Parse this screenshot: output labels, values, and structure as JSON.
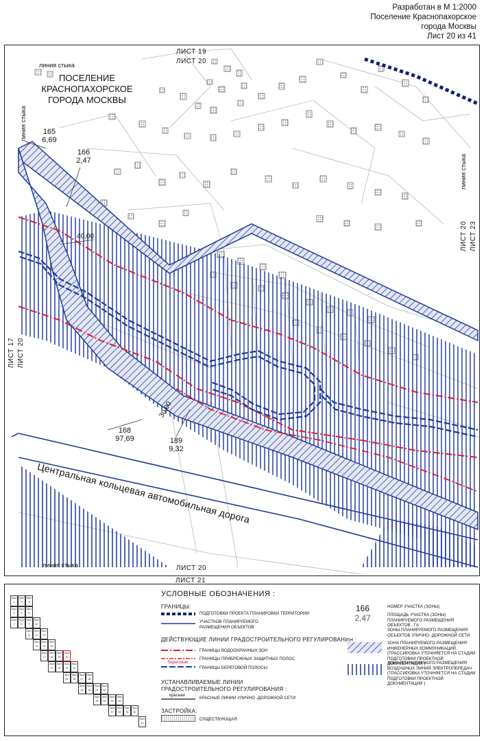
{
  "header": {
    "line1": "Разработан в М 1:2000",
    "line2": "Поселение Краснопахорское",
    "line3": "города Москвы",
    "line4": "Лист 20 из 41"
  },
  "map": {
    "sheet_top_outer": "ЛИСТ 19",
    "sheet_top_inner": "ЛИСТ 20",
    "sheet_bottom": "ЛИСТ 20",
    "sheet_bottom_outer": "ЛИСТ 21",
    "sheet_left_outer": "ЛИСТ 17",
    "sheet_left_inner": "ЛИСТ 20",
    "sheet_right_inner": "ЛИСТ 20",
    "sheet_right_outer": "ЛИСТ 23",
    "join_line_top": "линия стыка",
    "join_line_left": "линия стыка",
    "join_line_right": "линия стыка",
    "join_line_bottom": "линия стыка",
    "settlement": [
      "ПОСЕЛЕНИЕ",
      "КРАСНОПАХОРСКОЕ",
      "ГОРОДА МОСКВЫ"
    ],
    "road": "Центральная кольцевая автомобильная дорога",
    "width_a": "40,00",
    "width_b": "30,00",
    "plots": [
      {
        "num": "165",
        "area": "6,69"
      },
      {
        "num": "166",
        "area": "2,47"
      },
      {
        "num": "168",
        "area": "97,69"
      },
      {
        "num": "189",
        "area": "9,32"
      }
    ],
    "colors": {
      "blue": "#1d3a9a",
      "red": "#d8202a",
      "hatch": "#2a3f9e"
    }
  },
  "legend": {
    "title": "УСЛОВНЫЕ ОБОЗНАЧЕНИЯ :",
    "boundaries": "ГРАНИЦЫ:",
    "b1": "ПОДГОТОВКИ ПРОЕКТА ПЛАНИРОВКИ ТЕРРИТОРИИ",
    "b2": "УЧАСТКОВ ПЛАНИРУЕМОГО РАЗМЕЩЕНИЯ ОБЪЕКТОВ",
    "regulation": "ДЕЙСТВУЮЩИЕ ЛИНИИ ГРАДОСТРОИТЕЛЬНОГО РЕГУЛИРОВАНИЯ :",
    "r1": "ГРАНИЦЫ ВОДООХРАННЫХ ЗОН",
    "r2": "ГРАНИЦЫ ПРИБРЕЖНЫХ ЗАЩИТНЫХ ПОЛОС",
    "r3_tag": "береговая",
    "r3": "ГРАНИЦЫ БЕРЕГОВОЙ ПОЛОСЫ",
    "established": "УСТАНАВЛИВАЕМЫЕ ЛИНИИ ГРАДОСТРОИТЕЛЬНОГО РЕГУЛИРОВАНИЯ :",
    "e1_tag": "красная",
    "e1": "КРАСНЫЕ ЛИНИИ УЛИЧНО -ДОРОЖНОЙ СЕТИ",
    "buildings": "ЗАСТРОЙКА:",
    "bu1": "СУЩЕСТВУЮЩАЯ",
    "sample_num": "166",
    "sample_area": "2,47",
    "n1": "НОМЕР УЧАСТКА (ЗОНЫ)",
    "n2": "ПЛОЩАДЬ УЧАСТКА (ЗОНЫ) ПЛАНИРУЕМОГО РАЗМЕЩЕНИЯ ОБЪЕКТОВ , ГА",
    "z1": "ЗОНЫ ПЛАНИРУЕМОГО РАЗМЕЩЕНИЯ ОБЪЕКТОВ УЛИЧНО -ДОРОЖНОЙ СЕТИ",
    "z2": "ЗОНА ПЛАНИРУЕМОГО РАЗМЕЩЕНИЯ ИНЖЕНЕРНЫХ КОММУНИКАЦИЙ (ТРАССИРОВКА УТОЧНЯЕТСЯ НА СТАДИИ ПОДГОТОВКИ ПРОЕКТНОЙ ДОКУМЕНТАЦИИ )",
    "z3": "ЗОНА ПЛАНИРУЕМОГО РАЗМЕЩЕНИЯ ВОЗДУШНЫХ ЛИНИЙ ЭЛЕКТРОПЕРЕДАЧ (ТРАССИРОВКА УТОЧНЯЕТСЯ НА СТАДИИ ПОДГОТОВКИ ПРОЕКТНОЙ ДОКУМЕНТАЦИИ )",
    "index": [
      "Лист 1",
      "Лист 2",
      "Лист 3",
      "Лист 4",
      "Лист 5",
      "Лист 6",
      "Лист 7",
      "Лист 8",
      "Лист 9",
      "Лист 10",
      "Лист 11",
      "Лист 12",
      "Лист 13",
      "Лист 14",
      "Лист 15",
      "Лист 16",
      "Лист 17",
      "Лист 18",
      "Лист 19",
      "Лист 20",
      "Лист 21",
      "Лист 22",
      "Лист 23",
      "Лист 24",
      "Лист 25",
      "Лист 26",
      "Лист 27",
      "Лист 28",
      "Лист 29",
      "Лист 30",
      "Лист 31",
      "Лист 32",
      "Лист 33",
      "Лист 34",
      "Лист 35",
      "Лист 36",
      "Лист 37",
      "Лист 38",
      "Лист 39",
      "Лист 40",
      "Лист 41"
    ]
  }
}
